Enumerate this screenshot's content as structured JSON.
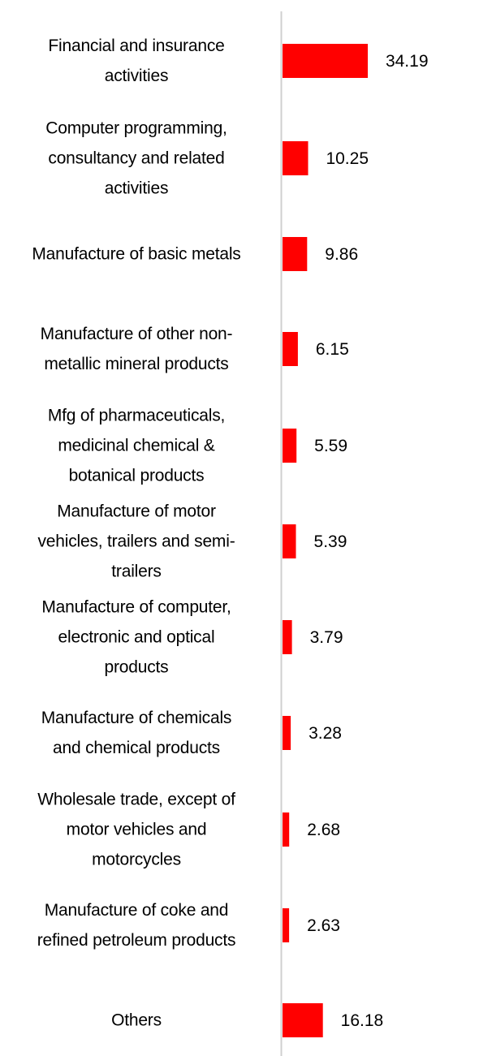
{
  "chart_data": {
    "type": "bar",
    "orientation": "horizontal",
    "categories": [
      "Financial and insurance activities",
      "Computer programming, consultancy and related activities",
      "Manufacture of basic metals",
      "Manufacture of other non-metallic mineral products",
      "Mfg of pharmaceuticals, medicinal chemical & botanical products",
      "Manufacture of motor vehicles, trailers and semi-trailers",
      "Manufacture of computer, electronic and optical products",
      "Manufacture of chemicals and chemical products",
      "Wholesale trade, except of motor vehicles and motorcycles",
      "Manufacture of coke and refined petroleum products",
      "Others"
    ],
    "values": [
      34.19,
      10.25,
      9.86,
      6.15,
      5.59,
      5.39,
      3.79,
      3.28,
      2.68,
      2.63,
      16.18
    ],
    "data_labels": [
      "34.19",
      "10.25",
      "9.86",
      "6.15",
      "5.59",
      "5.39",
      "3.79",
      "3.28",
      "2.68",
      "2.63",
      "16.18"
    ],
    "title": "",
    "xlabel": "",
    "ylabel": "",
    "grid": false,
    "legend": "none",
    "bar_color": "#FF0000",
    "axis_color": "#D0D0D0"
  }
}
